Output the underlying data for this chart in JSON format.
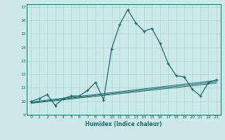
{
  "xlabel": "Humidex (Indice chaleur)",
  "bg_color": "#cce8e8",
  "grid_color": "#aad4d4",
  "line_color": "#1a6b6b",
  "xlim": [
    -0.5,
    23.5
  ],
  "ylim": [
    9,
    17.2
  ],
  "yticks": [
    9,
    10,
    11,
    12,
    13,
    14,
    15,
    16,
    17
  ],
  "xticks": [
    0,
    1,
    2,
    3,
    4,
    5,
    6,
    7,
    8,
    9,
    10,
    11,
    12,
    13,
    14,
    15,
    16,
    17,
    18,
    19,
    20,
    21,
    22,
    23
  ],
  "main_x": [
    0,
    1,
    2,
    3,
    4,
    5,
    6,
    7,
    8,
    9,
    10,
    11,
    12,
    13,
    14,
    15,
    16,
    17,
    18,
    19,
    20,
    21,
    22,
    23
  ],
  "main_y": [
    10.0,
    10.2,
    10.5,
    9.7,
    10.2,
    10.4,
    10.4,
    10.8,
    11.4,
    10.1,
    13.9,
    15.7,
    16.8,
    15.8,
    15.2,
    15.4,
    14.3,
    12.8,
    11.9,
    11.8,
    10.9,
    10.4,
    11.4,
    11.6
  ],
  "line2_x": [
    0,
    23
  ],
  "line2_y": [
    9.85,
    11.35
  ],
  "line3_x": [
    0,
    23
  ],
  "line3_y": [
    9.9,
    11.45
  ],
  "line4_x": [
    0,
    23
  ],
  "line4_y": [
    9.95,
    11.55
  ]
}
